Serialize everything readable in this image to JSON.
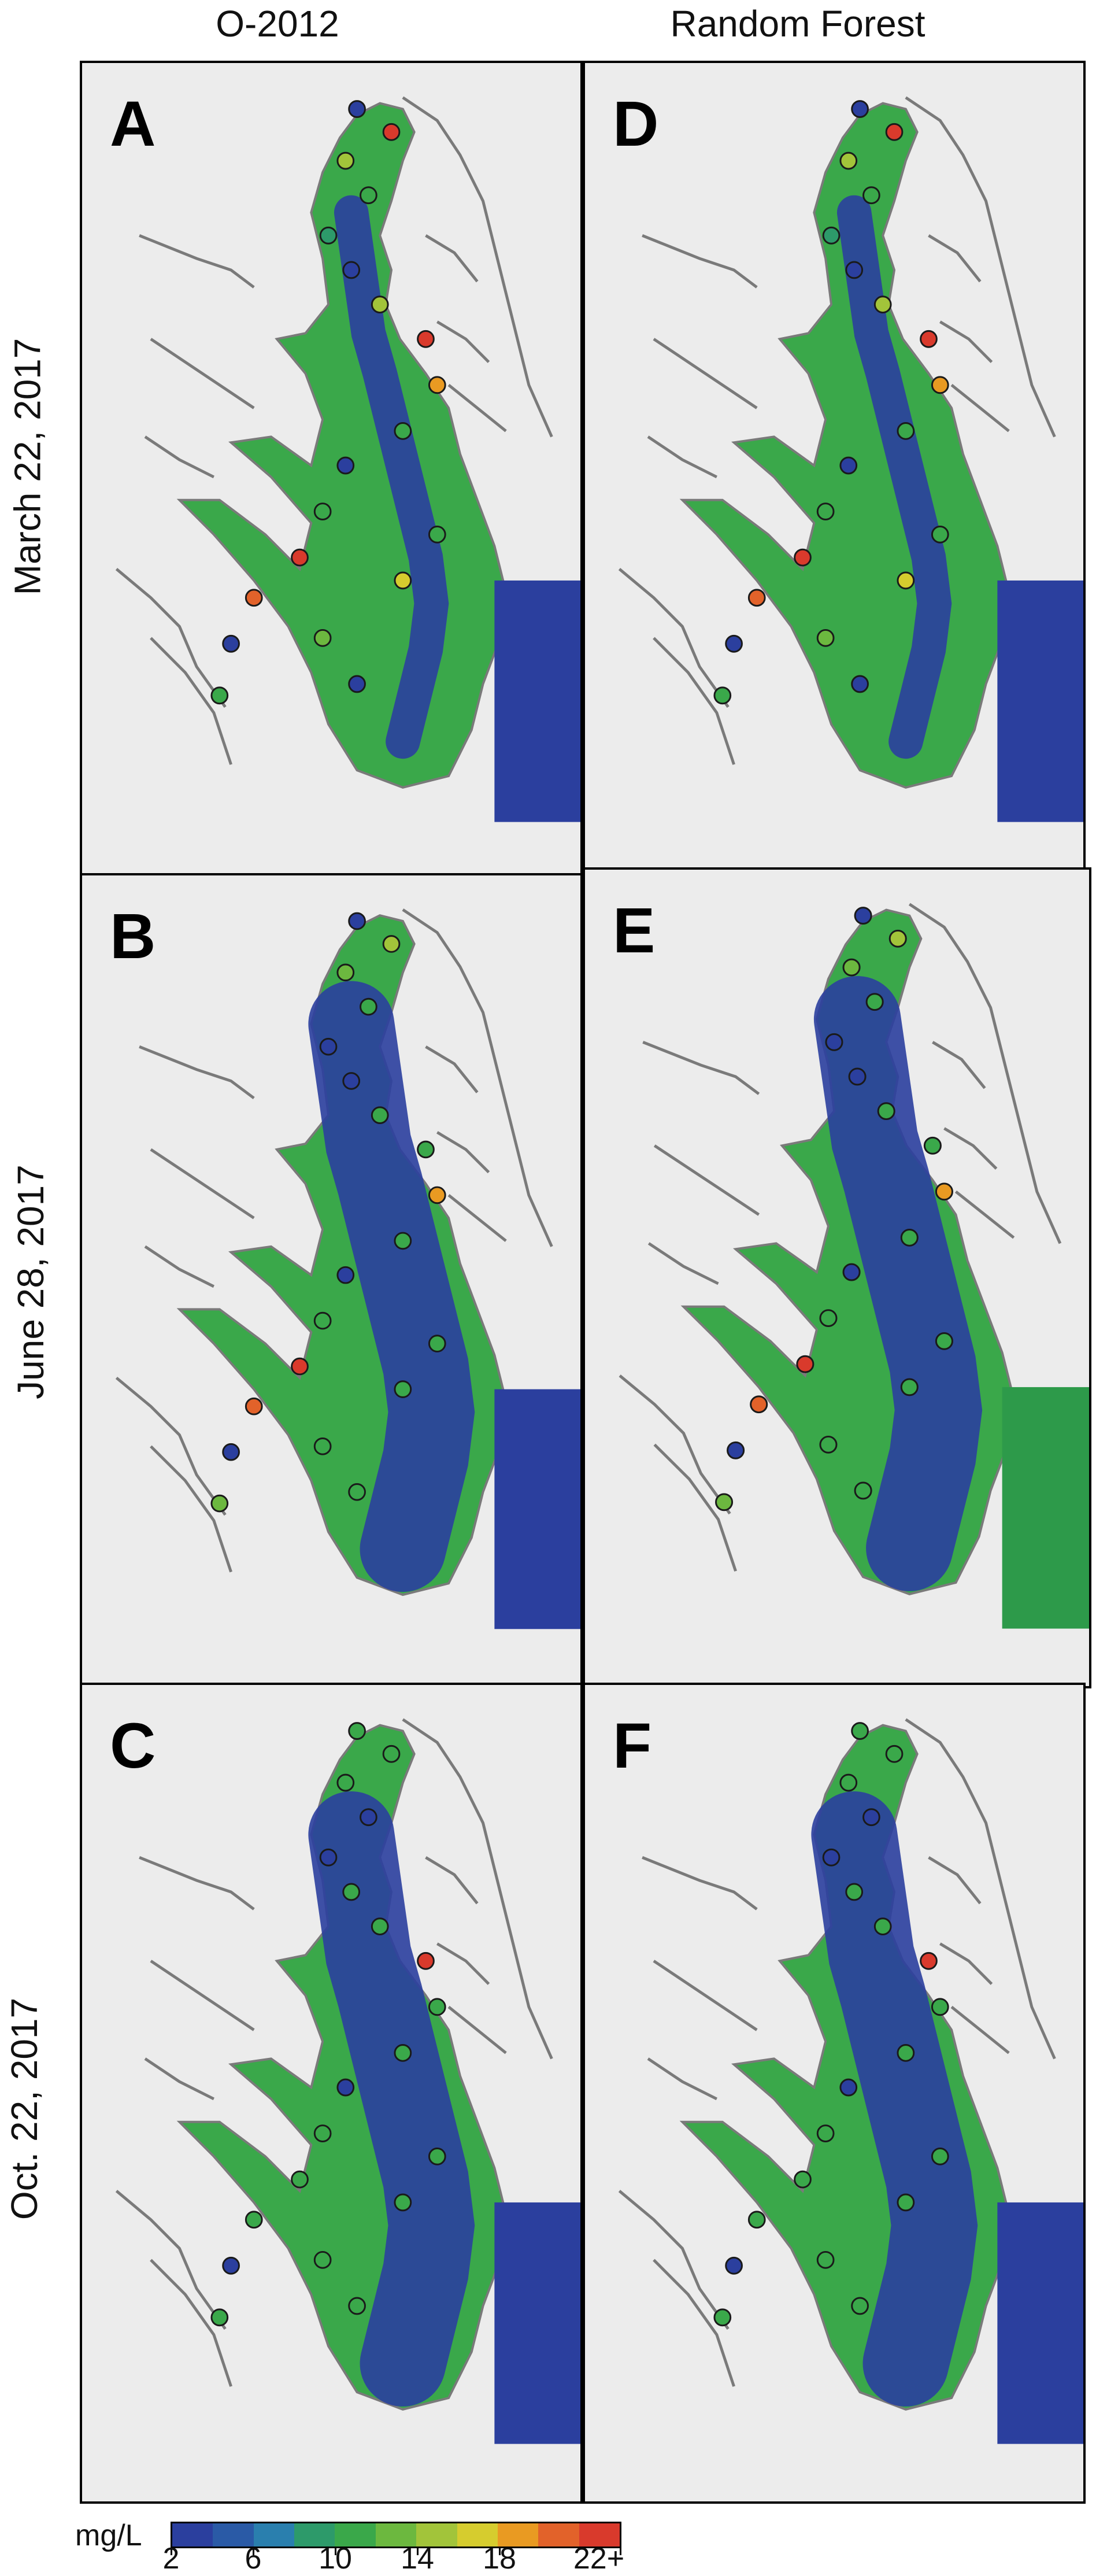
{
  "figure": {
    "columns": [
      {
        "title": "O-2012"
      },
      {
        "title": "Random Forest"
      }
    ],
    "rows": [
      {
        "label": "March 22, 2017"
      },
      {
        "label": "June 28, 2017"
      },
      {
        "label": "Oct. 22, 2017"
      }
    ],
    "panels": [
      {
        "letter": "A",
        "column": 0,
        "row": 0
      },
      {
        "letter": "D",
        "column": 1,
        "row": 0
      },
      {
        "letter": "B",
        "column": 0,
        "row": 1
      },
      {
        "letter": "E",
        "column": 1,
        "row": 1
      },
      {
        "letter": "C",
        "column": 0,
        "row": 2
      },
      {
        "letter": "F",
        "column": 1,
        "row": 2
      }
    ]
  },
  "legend": {
    "unit": "mg/L",
    "tick_labels": [
      "2",
      "6",
      "10",
      "14",
      "18",
      "22+"
    ],
    "colors": [
      "#2b3f9e",
      "#2a5aa6",
      "#2a7fae",
      "#2d9a6a",
      "#3aa84a",
      "#6cb83f",
      "#a2c43a",
      "#d6cc2e",
      "#e99a22",
      "#e2622a",
      "#d93a2c"
    ]
  },
  "colors": {
    "land": "#ececec",
    "shoreline": "#7a7a7a",
    "water_low": "#2b3f9e",
    "water_mid": "#3aa84a",
    "water_high": "#d93a2c",
    "point_outline": "#1a1a1a"
  }
}
